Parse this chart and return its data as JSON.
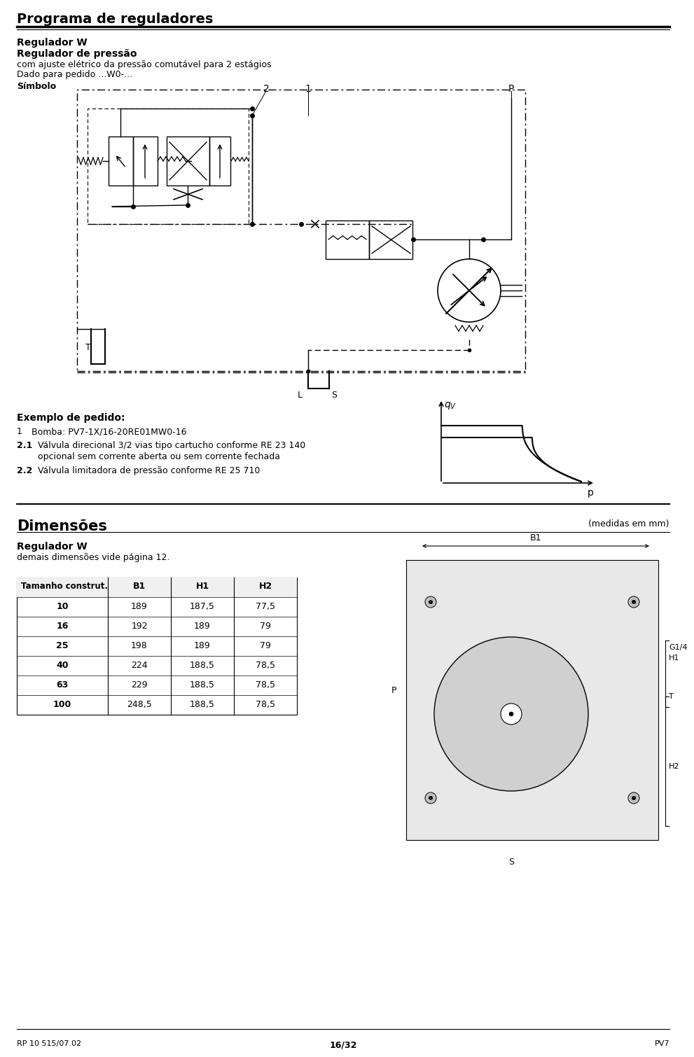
{
  "title": "Programa de reguladores",
  "subtitle1": "Regulador W",
  "subtitle2": "Regulador de pressão",
  "line3": "com ajuste elétrico da pressão comutável para 2 estágios",
  "line4": "Dado para pedido ...W0-...",
  "symbol_label": "Símbolo",
  "label_2": "2",
  "label_1": "1",
  "label_P": "P",
  "label_T": "T",
  "label_L": "L",
  "label_S_circuit": "S",
  "exemplo_title": "Exemplo de pedido:",
  "exemplo_1_num": "1",
  "exemplo_1_text": "Bomba: PV7-1X/16-20RE01MW0-16",
  "exemplo_2_num": "2.1",
  "exemplo_2_text": "Válvula direcional 3/2 vias tipo cartucho conforme RE 23 140",
  "exemplo_2_cont": "opcional sem corrente aberta ou sem corrente fechada",
  "exemplo_3_num": "2.2",
  "exemplo_3_text": "Válvula limitadora de pressão conforme RE 25 710",
  "qv_label": "q",
  "p_label": "p",
  "dimensoes_title": "Dimensões",
  "dimensoes_right": "(medidas em mm)",
  "regulador_w": "Regulador W",
  "demais": "demais dimensões vide página 12.",
  "tamanho_label": "Tamanho construt.",
  "col_b1": "B1",
  "col_h1": "H1",
  "col_h2": "H2",
  "table_data": [
    [
      "10",
      "189",
      "187,5",
      "77,5"
    ],
    [
      "16",
      "192",
      "189",
      "79"
    ],
    [
      "25",
      "198",
      "189",
      "79"
    ],
    [
      "40",
      "224",
      "188,5",
      "78,5"
    ],
    [
      "63",
      "229",
      "188,5",
      "78,5"
    ],
    [
      "100",
      "248,5",
      "188,5",
      "78,5"
    ]
  ],
  "b1_label": "B1",
  "p_pump_label": "P",
  "s_pump_label": "S",
  "g14_label": "G1/4",
  "h1_label": "H1",
  "t_label": "T",
  "h2_label": "H2",
  "footer_left": "RP 10 515/07.02",
  "footer_center": "16/32",
  "footer_right": "PV7",
  "bg_color": "#ffffff",
  "text_color": "#000000",
  "gray_color": "#888888"
}
